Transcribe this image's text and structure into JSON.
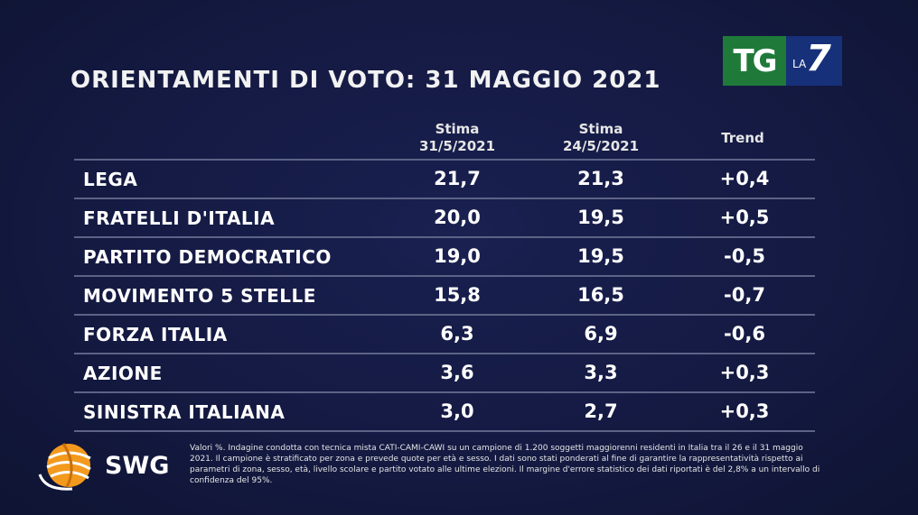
{
  "title": "ORIENTAMENTI DI VOTO: 31 MAGGIO 2021",
  "logo": {
    "tg": "TG",
    "la": "LA",
    "seven": "7"
  },
  "chart_data": {
    "type": "table",
    "title": "ORIENTAMENTI DI VOTO: 31 MAGGIO 2021",
    "columns": [
      {
        "label1": "Stima",
        "label2": "31/5/2021"
      },
      {
        "label1": "Stima",
        "label2": "24/5/2021"
      },
      {
        "label1": "Trend",
        "label2": ""
      }
    ],
    "rows": [
      {
        "party": "LEGA",
        "stima_31_5": "21,7",
        "stima_24_5": "21,3",
        "trend": "+0,4"
      },
      {
        "party": "FRATELLI D'ITALIA",
        "stima_31_5": "20,0",
        "stima_24_5": "19,5",
        "trend": "+0,5"
      },
      {
        "party": "PARTITO DEMOCRATICO",
        "stima_31_5": "19,0",
        "stima_24_5": "19,5",
        "trend": "-0,5"
      },
      {
        "party": "MOVIMENTO 5 STELLE",
        "stima_31_5": "15,8",
        "stima_24_5": "16,5",
        "trend": "-0,7"
      },
      {
        "party": "FORZA ITALIA",
        "stima_31_5": "6,3",
        "stima_24_5": "6,9",
        "trend": "-0,6"
      },
      {
        "party": "AZIONE",
        "stima_31_5": "3,6",
        "stima_24_5": "3,3",
        "trend": "+0,3"
      },
      {
        "party": "SINISTRA ITALIANA",
        "stima_31_5": "3,0",
        "stima_24_5": "2,7",
        "trend": "+0,3"
      }
    ]
  },
  "source": {
    "brand": "SWG",
    "note": "Valori %. Indagine condotta con tecnica mista CATI-CAMI-CAWI su un campione di 1.200 soggetti maggiorenni residenti in Italia tra il 26 e il 31 maggio 2021. Il campione è stratificato per zona e prevede quote per età e sesso. I dati sono stati ponderati al fine di garantire la rappresentatività rispetto ai parametri di zona, sesso, età, livello scolare e partito votato alle ultime elezioni. Il margine d'errore statistico dei dati riportati è del 2,8% a un intervallo di confidenza del 95%."
  },
  "colors": {
    "background": "#141a42",
    "rule": "#5c6386",
    "tg_green": "#1f7a3a",
    "la7_blue": "#17307a",
    "swg_orange": "#f39a1e"
  }
}
